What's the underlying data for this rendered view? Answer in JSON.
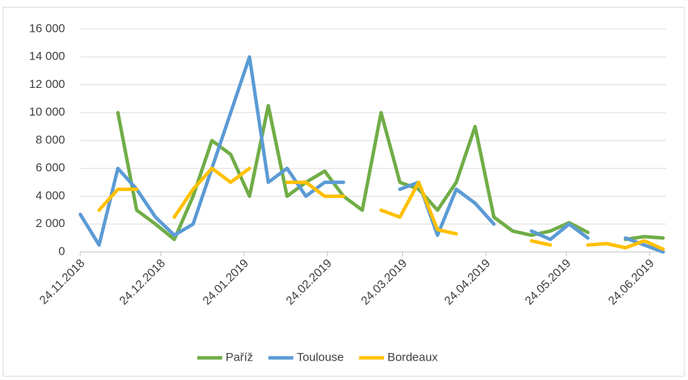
{
  "chart_data": {
    "type": "line",
    "x": [
      "24.11.2018",
      "01.12.2018",
      "08.12.2018",
      "15.12.2018",
      "22.12.2018",
      "29.12.2018",
      "05.01.2019",
      "12.01.2019",
      "19.01.2019",
      "26.01.2019",
      "02.02.2019",
      "09.02.2019",
      "16.02.2019",
      "23.02.2019",
      "02.03.2019",
      "09.03.2019",
      "16.03.2019",
      "23.03.2019",
      "30.03.2019",
      "06.04.2019",
      "13.04.2019",
      "20.04.2019",
      "27.04.2019",
      "04.05.2019",
      "11.05.2019",
      "18.05.2019",
      "25.05.2019",
      "01.06.2019",
      "08.06.2019",
      "15.06.2019",
      "22.06.2019",
      "29.06.2019"
    ],
    "series": [
      {
        "name": "Paříž",
        "color": "#70ad47",
        "values": [
          null,
          null,
          10000,
          3000,
          2000,
          900,
          4000,
          8000,
          7000,
          4000,
          10500,
          4000,
          5000,
          5800,
          4000,
          3000,
          10000,
          5000,
          4500,
          3000,
          5000,
          9000,
          2500,
          1500,
          1200,
          1500,
          2100,
          1400,
          null,
          900,
          1100,
          1000
        ]
      },
      {
        "name": "Toulouse",
        "color": "#5b9bd5",
        "values": [
          2700,
          500,
          6000,
          4500,
          2500,
          1200,
          2000,
          6000,
          10000,
          14000,
          5000,
          6000,
          4000,
          5000,
          5000,
          null,
          null,
          4500,
          5000,
          1200,
          4500,
          3500,
          2000,
          null,
          1500,
          900,
          2000,
          1000,
          null,
          1000,
          500,
          0
        ]
      },
      {
        "name": "Bordeaux",
        "color": "#ffc000",
        "values": [
          null,
          3000,
          4500,
          4500,
          null,
          2500,
          4500,
          6000,
          5000,
          6000,
          null,
          5000,
          5000,
          4000,
          4000,
          null,
          3000,
          2500,
          5000,
          1600,
          1300,
          null,
          null,
          null,
          800,
          500,
          null,
          500,
          600,
          300,
          800,
          200
        ]
      }
    ],
    "ylim": [
      0,
      16000
    ],
    "yticks": [
      0,
      {
        "value": 2000,
        "label": "2 000"
      },
      {
        "value": 4000,
        "label": "4 000"
      },
      {
        "value": 6000,
        "label": "6 000"
      },
      {
        "value": 8000,
        "label": "8 000"
      },
      {
        "value": 10000,
        "label": "10 000"
      },
      {
        "value": 12000,
        "label": "12 000"
      },
      {
        "value": 14000,
        "label": "14 000"
      },
      {
        "value": 16000,
        "label": "16 000"
      }
    ],
    "xlim": [
      "24.11.2018",
      "29.06.2019"
    ],
    "xticks": [
      "24.11.2018",
      "24.12.2018",
      "24.01.2019",
      "24.02.2019",
      "24.03.2019",
      "24.04.2019",
      "24.05.2019",
      "24.06.2019"
    ],
    "grid": true,
    "legend": "bottom"
  }
}
